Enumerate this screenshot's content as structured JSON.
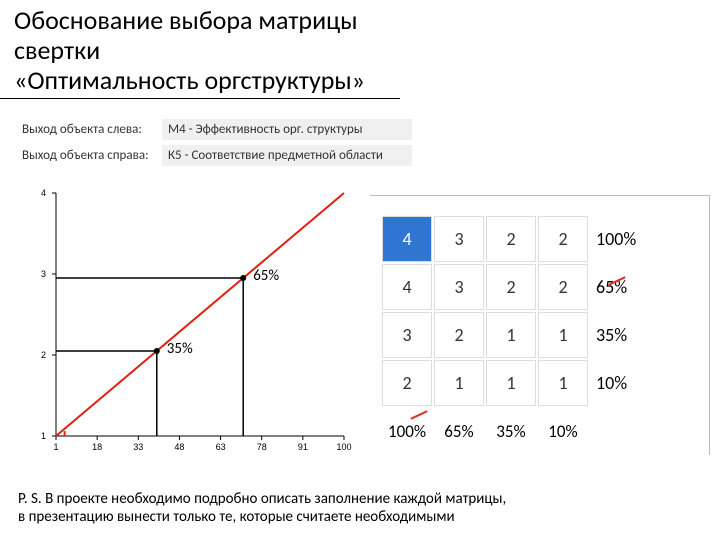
{
  "title_line1": "Обоснование выбора матрицы свертки",
  "title_line2": "«Оптимальность оргструктуры»",
  "params": {
    "left_label": "Выход объекта слева:",
    "left_value": "М4 - Эффективность орг. структуры",
    "right_label": "Выход объекта справа:",
    "right_value": "К5 - Соответствие предметной области"
  },
  "chart": {
    "type": "line",
    "x_ticks": [
      "1",
      "18",
      "33",
      "48",
      "63",
      "78",
      "91",
      "100"
    ],
    "y_ticks": [
      "1",
      "2",
      "3",
      "4"
    ],
    "line_color": "#e02010",
    "axis_color": "#000000",
    "label_35": "35%",
    "label_65": "65%",
    "mark_x_35": 0.35,
    "mark_x_65": 0.65,
    "tick_fontsize": 9,
    "label_fontsize": 15
  },
  "matrix": {
    "rows": [
      [
        "4",
        "3",
        "2",
        "2"
      ],
      [
        "4",
        "3",
        "2",
        "2"
      ],
      [
        "3",
        "2",
        "1",
        "1"
      ],
      [
        "2",
        "1",
        "1",
        "1"
      ]
    ],
    "row_pct": [
      "100%",
      "65%",
      "35%",
      "10%"
    ],
    "col_pct": [
      "100%",
      "65%",
      "35%",
      "10%"
    ],
    "selected_row": 0,
    "selected_col": 0,
    "cell_border_color": "#dddddd",
    "sel_bg": "#2e76d1",
    "cell_font": 18
  },
  "footer_line1": "P. S. В проекте необходимо подробно описать заполнение каждой матрицы,",
  "footer_line2": " в презентацию вынести только те, которые считаете необходимыми"
}
